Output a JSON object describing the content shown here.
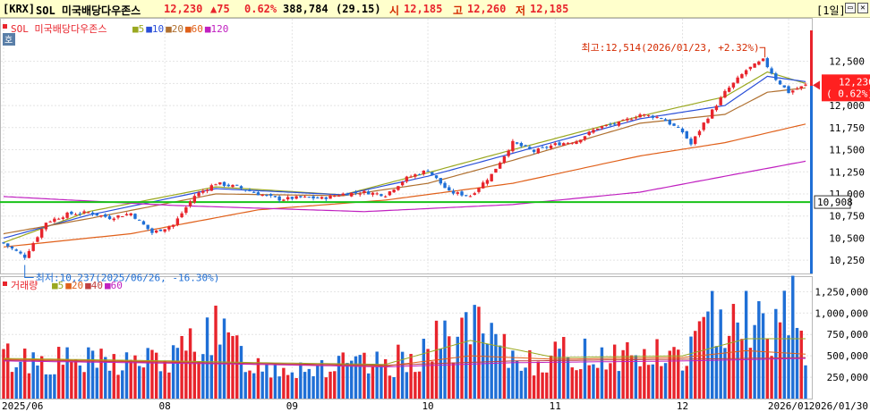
{
  "header": {
    "exchange": "[KRX]",
    "name": "SOL 미국배당다우존스",
    "price": "12,230",
    "change": "▲75",
    "change_pct": "0.62%",
    "volume": "388,784",
    "volume_ratio": "(29.15)",
    "open_label": "시",
    "open": "12,185",
    "high_label": "고",
    "high": "12,260",
    "low_label": "저",
    "low": "12,185",
    "period": "[1일]",
    "colors": {
      "up": "#e8242c",
      "down": "#1f6fd6",
      "label": "#d42a00"
    }
  },
  "price_panel": {
    "ticker_label": "SOL 미국배당다우존스",
    "ho_label": "호",
    "ma_legend": [
      {
        "label": "5",
        "color": "#9aa820"
      },
      {
        "label": "10",
        "color": "#2a4fd8"
      },
      {
        "label": "20",
        "color": "#b07030"
      },
      {
        "label": "60",
        "color": "#e0601a"
      },
      {
        "label": "120",
        "color": "#c020c0"
      }
    ],
    "current_price_tag": "12,230",
    "current_change_tag": "( 0.62%)",
    "hline_value_label": "10,908",
    "high_annotation": "최고:12,514(2026/01/23, +2.32%)",
    "low_annotation": "최저:10,237(2025/06/26, -16.30%)"
  },
  "volume_panel": {
    "title": "거래량",
    "ma_legend": [
      {
        "label": "5",
        "color": "#9aa820"
      },
      {
        "label": "20",
        "color": "#e0601a"
      },
      {
        "label": "40",
        "color": "#c04040"
      },
      {
        "label": "60",
        "color": "#c020c0"
      }
    ]
  },
  "chart_data": {
    "type": "candlestick",
    "x_range": [
      "2025/06/16",
      "2026/01/30"
    ],
    "x_tick_labels": [
      "2025/06",
      "08",
      "09",
      "10",
      "11",
      "12",
      "2026/01",
      "2026/01/30"
    ],
    "price_axis": {
      "range": [
        10100,
        12850
      ],
      "ticks": [
        "10,250",
        "10,500",
        "10,750",
        "11,000",
        "11,250",
        "11,500",
        "11,750",
        "12,000",
        "12,250",
        "12,500"
      ]
    },
    "volume_axis": {
      "range": [
        0,
        1400000
      ],
      "ticks": [
        "250,000",
        "500,000",
        "750,000",
        "1,000,000",
        "1,250,000"
      ]
    },
    "horizontal_line": 10908,
    "last_price": 12230,
    "high": {
      "value": 12514,
      "date": "2026/01/23",
      "pct": "+2.32%"
    },
    "low": {
      "value": 10237,
      "date": "2025/06/26",
      "pct": "-16.30%"
    },
    "close_anchors": [
      [
        0,
        10440
      ],
      [
        5,
        10290
      ],
      [
        10,
        10680
      ],
      [
        15,
        10770
      ],
      [
        20,
        10790
      ],
      [
        25,
        10730
      ],
      [
        30,
        10780
      ],
      [
        35,
        10560
      ],
      [
        40,
        10650
      ],
      [
        45,
        10980
      ],
      [
        50,
        11120
      ],
      [
        55,
        11080
      ],
      [
        60,
        11000
      ],
      [
        65,
        10940
      ],
      [
        70,
        10960
      ],
      [
        75,
        10950
      ],
      [
        80,
        11000
      ],
      [
        85,
        11020
      ],
      [
        90,
        10990
      ],
      [
        95,
        11180
      ],
      [
        100,
        11270
      ],
      [
        105,
        11020
      ],
      [
        110,
        10980
      ],
      [
        115,
        11220
      ],
      [
        120,
        11580
      ],
      [
        125,
        11480
      ],
      [
        130,
        11560
      ],
      [
        135,
        11600
      ],
      [
        140,
        11750
      ],
      [
        145,
        11800
      ],
      [
        150,
        11900
      ],
      [
        155,
        11860
      ],
      [
        160,
        11700
      ],
      [
        162,
        11560
      ],
      [
        165,
        11800
      ],
      [
        170,
        12150
      ],
      [
        175,
        12400
      ],
      [
        179,
        12514
      ],
      [
        182,
        12300
      ],
      [
        185,
        12150
      ],
      [
        189,
        12230
      ]
    ],
    "ma_lines": [
      {
        "name": "5",
        "color": "#9aa820",
        "points": [
          [
            0,
            10450
          ],
          [
            20,
            10800
          ],
          [
            50,
            11080
          ],
          [
            80,
            10990
          ],
          [
            100,
            11240
          ],
          [
            120,
            11500
          ],
          [
            150,
            11880
          ],
          [
            170,
            12100
          ],
          [
            180,
            12380
          ],
          [
            189,
            12250
          ]
        ]
      },
      {
        "name": "10",
        "color": "#2a4fd8",
        "points": [
          [
            0,
            10500
          ],
          [
            20,
            10760
          ],
          [
            50,
            11060
          ],
          [
            80,
            10990
          ],
          [
            100,
            11200
          ],
          [
            120,
            11460
          ],
          [
            150,
            11850
          ],
          [
            170,
            12000
          ],
          [
            180,
            12330
          ],
          [
            189,
            12270
          ]
        ]
      },
      {
        "name": "20",
        "color": "#b07030",
        "points": [
          [
            0,
            10550
          ],
          [
            20,
            10720
          ],
          [
            50,
            11000
          ],
          [
            80,
            10980
          ],
          [
            100,
            11120
          ],
          [
            120,
            11380
          ],
          [
            150,
            11800
          ],
          [
            170,
            11900
          ],
          [
            180,
            12150
          ],
          [
            189,
            12200
          ]
        ]
      },
      {
        "name": "60",
        "color": "#e0601a",
        "points": [
          [
            0,
            10400
          ],
          [
            30,
            10550
          ],
          [
            60,
            10820
          ],
          [
            90,
            10930
          ],
          [
            120,
            11120
          ],
          [
            150,
            11430
          ],
          [
            170,
            11580
          ],
          [
            189,
            11790
          ]
        ]
      },
      {
        "name": "120",
        "color": "#c020c0",
        "points": [
          [
            0,
            10970
          ],
          [
            40,
            10870
          ],
          [
            85,
            10800
          ],
          [
            120,
            10880
          ],
          [
            150,
            11020
          ],
          [
            170,
            11200
          ],
          [
            189,
            11370
          ]
        ]
      }
    ],
    "volume_anchors": [
      [
        0,
        480000
      ],
      [
        20,
        420000
      ],
      [
        40,
        450000
      ],
      [
        48,
        830000
      ],
      [
        60,
        380000
      ],
      [
        90,
        380000
      ],
      [
        100,
        580000
      ],
      [
        110,
        830000
      ],
      [
        120,
        450000
      ],
      [
        140,
        530000
      ],
      [
        160,
        480000
      ],
      [
        172,
        1180000
      ],
      [
        180,
        760000
      ],
      [
        187,
        1330000
      ],
      [
        189,
        388784
      ]
    ],
    "volume_ma": [
      {
        "name": "5",
        "color": "#9aa820",
        "points": [
          [
            0,
            470000
          ],
          [
            40,
            440000
          ],
          [
            60,
            420000
          ],
          [
            90,
            400000
          ],
          [
            110,
            680000
          ],
          [
            130,
            480000
          ],
          [
            160,
            500000
          ],
          [
            175,
            700000
          ],
          [
            189,
            700000
          ]
        ]
      },
      {
        "name": "20",
        "color": "#e0601a",
        "points": [
          [
            0,
            460000
          ],
          [
            40,
            430000
          ],
          [
            60,
            400000
          ],
          [
            90,
            380000
          ],
          [
            110,
            500000
          ],
          [
            130,
            460000
          ],
          [
            160,
            480000
          ],
          [
            175,
            560000
          ],
          [
            189,
            520000
          ]
        ]
      },
      {
        "name": "40",
        "color": "#c04040",
        "points": [
          [
            0,
            450000
          ],
          [
            60,
            410000
          ],
          [
            90,
            390000
          ],
          [
            120,
            440000
          ],
          [
            160,
            460000
          ],
          [
            189,
            480000
          ]
        ]
      },
      {
        "name": "60",
        "color": "#c020c0",
        "points": [
          [
            0,
            440000
          ],
          [
            60,
            400000
          ],
          [
            90,
            370000
          ],
          [
            120,
            420000
          ],
          [
            160,
            440000
          ],
          [
            189,
            470000
          ]
        ]
      }
    ]
  }
}
